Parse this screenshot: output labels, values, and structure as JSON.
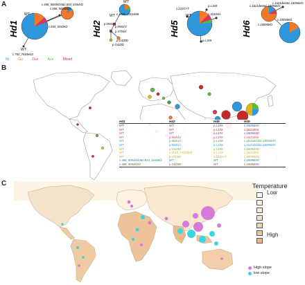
{
  "panels": {
    "a": {
      "letter": "A",
      "networks": [
        {
          "title": "Hd1",
          "nodes": [
            "WT",
            "c.468_500del33&c.833_834del2",
            "c.468_500del33",
            "c.833_834del2",
            "WT",
            "c.702_744del43"
          ]
        },
        {
          "title": "Hd2",
          "nodes": [
            "WT",
            "c.1015_1022del8",
            "WT",
            "p.M451V",
            "p.M451V",
            "p.V704H",
            "p.G420D",
            "p.G420D"
          ]
        },
        {
          "title": "Hd5",
          "nodes": [
            "WT",
            "p.L19S",
            "c.222G>T",
            "c.323delA",
            "p.L19S"
          ]
        },
        {
          "title": "Hd6",
          "nodes": [
            "c.1621del4&c.1809delG",
            "c.1809delG",
            "c.1621del4&c.1809delG",
            "c.1809delG"
          ]
        }
      ],
      "legend": [
        {
          "label": "Ni",
          "color": "#2f97dc"
        },
        {
          "label": "Gu",
          "color": "#f07a2a"
        },
        {
          "label": "Dus",
          "color": "#d9385a"
        },
        {
          "label": "Aus",
          "color": "#58b847"
        },
        {
          "label": "Mixed",
          "color": "#d4232b"
        }
      ]
    },
    "b": {
      "letter": "B",
      "table": {
        "headers": [
          "Hd1",
          "Hd2",
          "Hd5",
          "Hd6"
        ],
        "rows": [
          {
            "color": "#4058a8",
            "cells": [
              "WT",
              "WT",
              "p.L19S",
              "c.1809delG"
            ]
          },
          {
            "color": "#c42a2a",
            "cells": [
              "WT",
              "WT",
              "p.L19S",
              "c.1621del4"
            ]
          },
          {
            "color": "#7b3f98",
            "cells": [
              "WT",
              "WT",
              "p.L19S",
              "c.1809delG"
            ]
          },
          {
            "color": "#d9385a",
            "cells": [
              "WT",
              "p.M451V",
              "p.L19S",
              "c.1621del4"
            ]
          },
          {
            "color": "#3fa34d",
            "cells": [
              "WT",
              "p.M451V",
              "p.L19S",
              "c.1621del4&c.1809delG"
            ]
          },
          {
            "color": "#2f97dc",
            "cells": [
              "WT",
              "p.M451V",
              "p.L19S",
              "c.1621del4&c.1809delG"
            ]
          },
          {
            "color": "#7ab03a",
            "cells": [
              "WT",
              "p.G420D",
              "p.L19S",
              "c.1809delG"
            ]
          },
          {
            "color": "#e0b318",
            "cells": [
              "WT",
              "c.1015_1022del8",
              "p.L19S",
              "c.1621del4"
            ]
          },
          {
            "color": "#c7a44a",
            "cells": [
              "WT",
              "p.G420D",
              "c.222G>T",
              "c.1809delG"
            ]
          },
          {
            "color": "#1f8f8a",
            "cells": [
              "c.468_500del33&c.833_834del2",
              "WT",
              "WT",
              "c.1809delG"
            ]
          },
          {
            "color": "#6b5a2f",
            "cells": [
              "c.468_500del33",
              "p.G420D",
              "WT",
              "c.1809delG"
            ]
          }
        ]
      }
    },
    "c": {
      "letter": "C",
      "temperature": {
        "title": "Temperature",
        "low": "Low",
        "high": "High",
        "scale": [
          "#ffffff",
          "#fcf4e8",
          "#f9ead6",
          "#f6dfc4",
          "#f2d3b0",
          "#eec59c",
          "#e9b78a"
        ]
      },
      "slope_legend": [
        {
          "label": "High slope",
          "color": "#d87ad8"
        },
        {
          "label": "low slope",
          "color": "#3ad6e0"
        }
      ]
    }
  }
}
